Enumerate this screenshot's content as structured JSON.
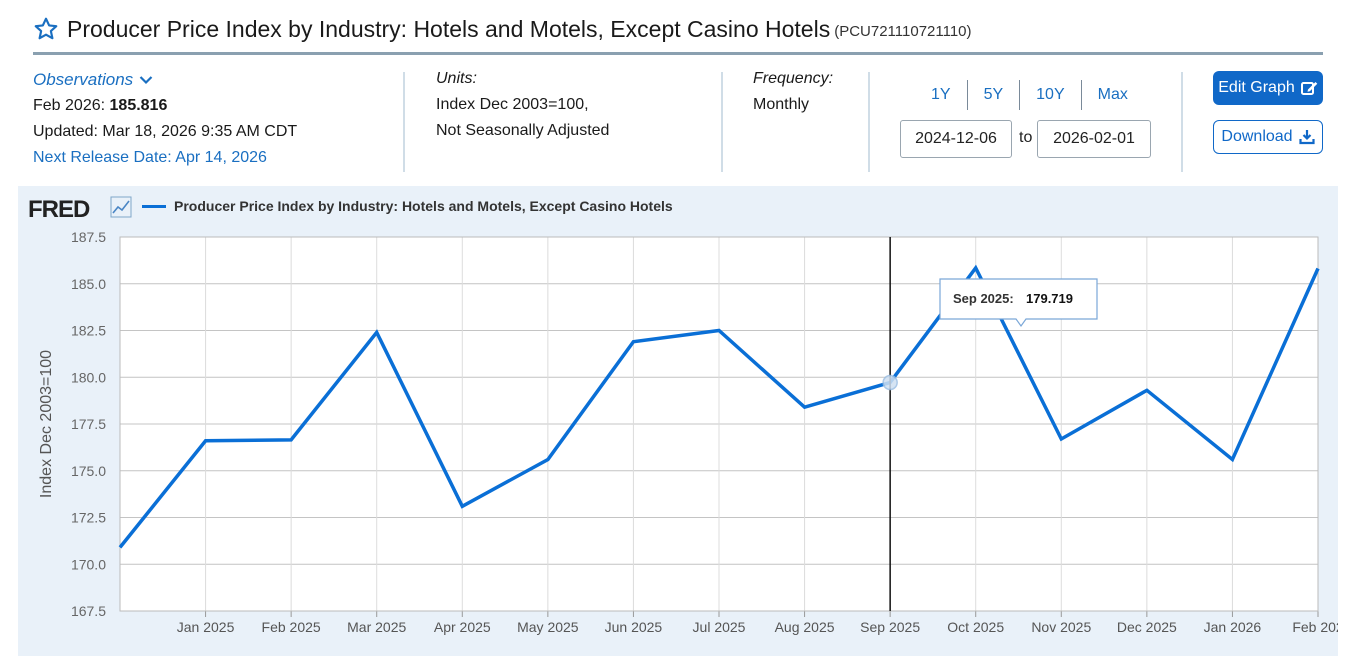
{
  "header": {
    "title": "Producer Price Index by Industry: Hotels and Motels, Except Casino Hotels",
    "series_id": "(PCU721110721110)",
    "icons": {
      "favorite": "star-icon"
    }
  },
  "observations": {
    "label": "Observations",
    "latest_period": "Feb 2026:",
    "latest_value": "185.816",
    "updated": "Updated: Mar 18, 2026 9:35 AM CDT",
    "next_release": "Next Release Date: Apr 14, 2026"
  },
  "units": {
    "label": "Units:",
    "line1": "Index Dec 2003=100,",
    "line2": "Not Seasonally Adjusted"
  },
  "frequency": {
    "label": "Frequency:",
    "value": "Monthly"
  },
  "range": {
    "buttons": [
      "1Y",
      "5Y",
      "10Y",
      "Max"
    ],
    "start": "2024-12-06",
    "to_label": "to",
    "end": "2026-02-01"
  },
  "actions": {
    "edit_label": "Edit Graph",
    "download_label": "Download"
  },
  "colors": {
    "series": "#0a6fd6",
    "panel": "#e9f1f9",
    "primary_button": "#1068c8",
    "link": "#1a6fc1"
  },
  "chart_data": {
    "type": "line",
    "logo": "FRED",
    "legend": "Producer Price Index by Industry: Hotels and Motels, Except Casino Hotels",
    "ylabel": "Index Dec 2003=100",
    "ylim": [
      167.5,
      187.5
    ],
    "yticks": [
      "187.5",
      "185.0",
      "182.5",
      "180.0",
      "177.5",
      "175.0",
      "172.5",
      "170.0",
      "167.5"
    ],
    "grid": true,
    "x": [
      "Dec 2024",
      "Jan 2025",
      "Feb 2025",
      "Mar 2025",
      "Apr 2025",
      "May 2025",
      "Jun 2025",
      "Jul 2025",
      "Aug 2025",
      "Sep 2025",
      "Oct 2025",
      "Nov 2025",
      "Dec 2025",
      "Jan 2026",
      "Feb 2026"
    ],
    "xticks": [
      "Jan 2025",
      "Feb 2025",
      "Mar 2025",
      "Apr 2025",
      "May 2025",
      "Jun 2025",
      "Jul 2025",
      "Aug 2025",
      "Sep 2025",
      "Oct 2025",
      "Nov 2025",
      "Dec 2025",
      "Jan 2026",
      "Feb 202"
    ],
    "values": [
      170.9,
      176.6,
      176.65,
      182.4,
      173.1,
      175.6,
      181.9,
      182.5,
      178.4,
      179.719,
      185.85,
      176.7,
      179.3,
      175.6,
      185.816
    ],
    "tooltip": {
      "label": "Sep 2025:",
      "value": "179.719"
    }
  }
}
